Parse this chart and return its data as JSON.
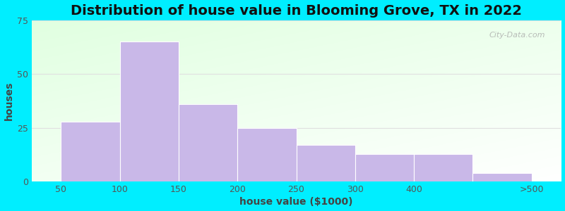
{
  "categories": [
    "50",
    "100",
    "150",
    "200",
    "250",
    "300",
    "400",
    ">500"
  ],
  "values": [
    28,
    65,
    36,
    25,
    17,
    13,
    13,
    4
  ],
  "bar_color": "#c9b8e8",
  "bar_edgecolor": "#ffffff",
  "title": "Distribution of house value in Blooming Grove, TX in 2022",
  "xlabel": "house value ($1000)",
  "ylabel": "houses",
  "ylim": [
    0,
    75
  ],
  "yticks": [
    0,
    25,
    50,
    75
  ],
  "title_fontsize": 14,
  "axis_label_fontsize": 10,
  "tick_fontsize": 9,
  "outer_bg": "#00eeff",
  "plot_bg_colors": [
    "#e8f5e8",
    "#f5fff5",
    "#ffffff"
  ],
  "grid_color": "#e8e8e8",
  "watermark": "City-Data.com",
  "bar_left_edges": [
    0,
    1,
    2,
    3,
    4,
    5,
    6,
    7
  ],
  "bar_widths": [
    1,
    1,
    1,
    1,
    1,
    1,
    1,
    1
  ],
  "xtick_positions": [
    0,
    1,
    2,
    3,
    4,
    5,
    6,
    7,
    8
  ],
  "xtick_labels": [
    "50",
    "100",
    "150",
    "200",
    "250",
    "300",
    "400",
    "",
    ">500"
  ]
}
